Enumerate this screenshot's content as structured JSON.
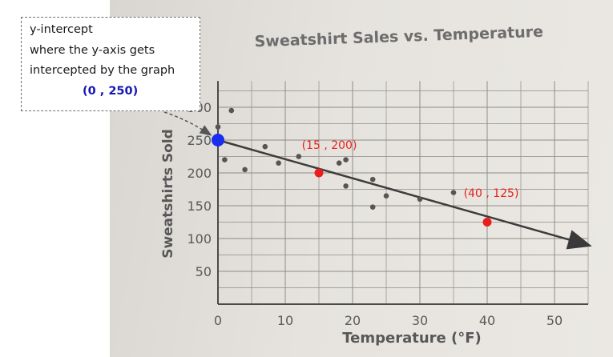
{
  "annotation": {
    "line1": "y-intercept",
    "line2": "where the y-axis gets",
    "line3": "intercepted by the graph",
    "coordinate": "(0 , 250)"
  },
  "chart_data": {
    "type": "scatter",
    "title": "Sweatshirt Sales vs. Temperature",
    "xlabel": "Temperature (°F)",
    "ylabel": "Sweatshirts Sold",
    "xlim": [
      0,
      55
    ],
    "ylim": [
      0,
      340
    ],
    "x_ticks": [
      0,
      10,
      20,
      30,
      40,
      50
    ],
    "y_ticks": [
      50,
      100,
      150,
      200,
      250,
      300
    ],
    "grid": true,
    "points": [
      {
        "x": 0,
        "y": 270
      },
      {
        "x": 2,
        "y": 295
      },
      {
        "x": 1,
        "y": 220
      },
      {
        "x": 4,
        "y": 205
      },
      {
        "x": 7,
        "y": 240
      },
      {
        "x": 9,
        "y": 215
      },
      {
        "x": 12,
        "y": 225
      },
      {
        "x": 18,
        "y": 215
      },
      {
        "x": 19,
        "y": 220
      },
      {
        "x": 19,
        "y": 180
      },
      {
        "x": 23,
        "y": 190
      },
      {
        "x": 23,
        "y": 148
      },
      {
        "x": 25,
        "y": 165
      },
      {
        "x": 30,
        "y": 160
      },
      {
        "x": 35,
        "y": 170
      }
    ],
    "trend_line": {
      "from": [
        0,
        250
      ],
      "to": [
        55,
        90
      ]
    },
    "highlighted": [
      {
        "x": 0,
        "y": 250,
        "color": "#1a2ef0"
      },
      {
        "x": 15,
        "y": 200,
        "color": "#ea1d1d",
        "label": "(15 , 200)"
      },
      {
        "x": 40,
        "y": 125,
        "color": "#ea1d1d",
        "label": "(40 , 125)"
      }
    ]
  }
}
